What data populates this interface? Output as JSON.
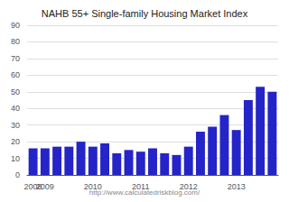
{
  "chart_data": {
    "type": "bar",
    "title": "NAHB 55+ Single-family Housing Market Index",
    "subtitle": "http://www.calculatedriskblog.com/",
    "categories": [
      "2008",
      "2009",
      null,
      null,
      null,
      "2010",
      null,
      null,
      null,
      "2011",
      null,
      null,
      null,
      "2012",
      null,
      null,
      null,
      "2013",
      null,
      null,
      null
    ],
    "values": [
      16,
      16,
      17,
      17,
      20,
      17,
      19,
      13,
      15,
      14,
      16,
      13,
      12,
      17,
      26,
      29,
      36,
      27,
      45,
      53,
      50
    ],
    "color": "#2424c8",
    "ylim": [
      0,
      90
    ],
    "yticks": [
      0,
      10,
      20,
      30,
      40,
      50,
      60,
      70,
      80,
      90
    ],
    "grid": true
  }
}
